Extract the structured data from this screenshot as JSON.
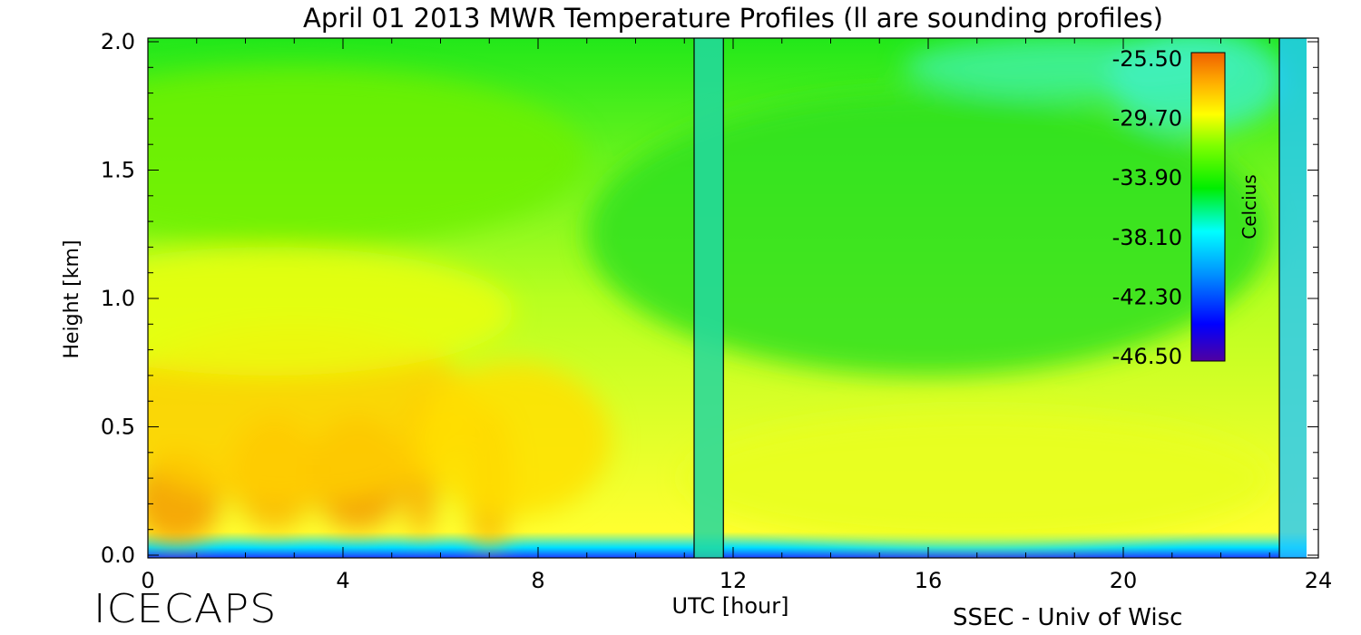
{
  "chart_data": {
    "type": "heatmap",
    "title": "April 01 2013 MWR Temperature Profiles (ll are sounding profiles)",
    "xlabel": "UTC [hour]",
    "ylabel": "Height [km]",
    "xlim": [
      0,
      24
    ],
    "ylim": [
      0.0,
      2.0
    ],
    "x_ticks": [
      "0",
      "4",
      "8",
      "12",
      "16",
      "20",
      "24"
    ],
    "y_ticks": [
      "0.0",
      "0.5",
      "1.0",
      "1.5",
      "2.0"
    ],
    "colorbar": {
      "label": "Celcius",
      "ticks": [
        "-25.50",
        "-29.70",
        "-33.90",
        "-38.10",
        "-42.30",
        "-46.50"
      ],
      "range": [
        -46.5,
        -25.5
      ]
    },
    "sounding_times": [
      11.2,
      11.8,
      23.2
    ],
    "colors": {
      "warm": "#f07800",
      "mid": "#ffff00",
      "neutral": "#00ee00",
      "cool": "#00ffff",
      "cold": "#0000ff"
    }
  },
  "footer": {
    "brand": "ICECAPS",
    "credit": "SSEC - Univ of Wisc"
  }
}
